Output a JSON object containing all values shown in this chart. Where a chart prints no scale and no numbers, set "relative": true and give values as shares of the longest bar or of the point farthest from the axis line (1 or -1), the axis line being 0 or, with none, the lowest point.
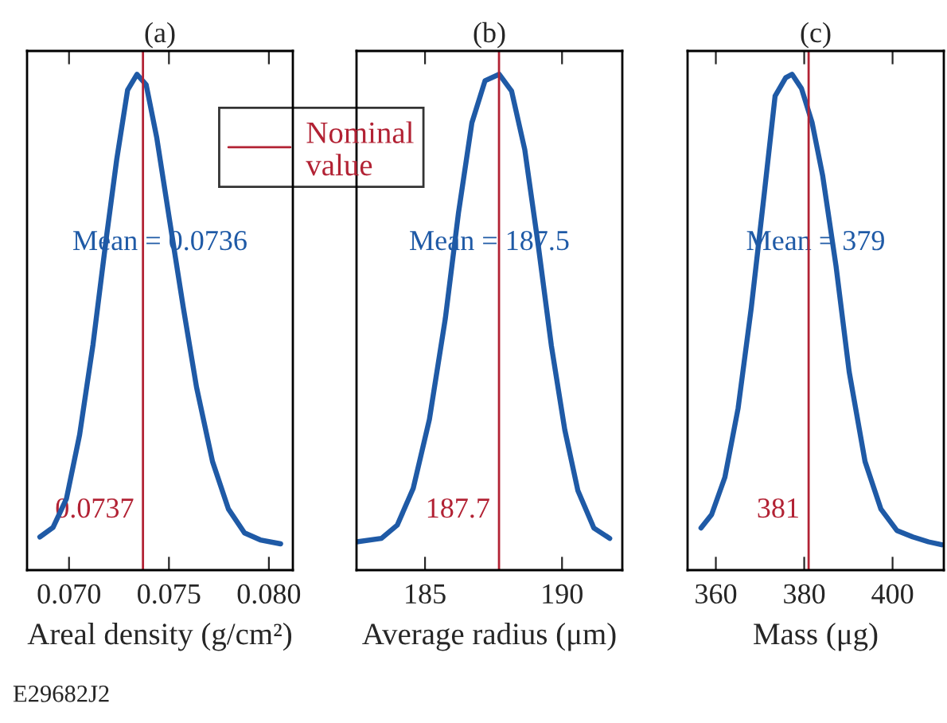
{
  "chart_data": [
    {
      "type": "line",
      "title": "(a)",
      "xlabel": "Areal density (g/cm²)",
      "relative": true,
      "tick_labels": "x",
      "xlim": [
        0.0679,
        0.0812
      ],
      "xticks": [
        {
          "value": 0.07,
          "label": "0.070"
        },
        {
          "value": 0.075,
          "label": "0.075"
        },
        {
          "value": 0.08,
          "label": "0.080"
        }
      ],
      "grid": false,
      "legend": "top right",
      "marker": "none",
      "line_style": "solid",
      "series": [
        {
          "color": "#1f5aa6",
          "x": [
            0.06854,
            0.0692,
            0.06987,
            0.07053,
            0.0712,
            0.07186,
            0.07239,
            0.07293,
            0.0734,
            0.07386,
            0.07439,
            0.07505,
            0.07572,
            0.07638,
            0.07718,
            0.07798,
            0.07878,
            0.07957,
            0.08059
          ],
          "values": [
            0.067,
            0.086,
            0.144,
            0.273,
            0.455,
            0.668,
            0.829,
            0.968,
            1,
            0.979,
            0.872,
            0.701,
            0.529,
            0.369,
            0.219,
            0.123,
            0.075,
            0.061,
            0.053
          ]
        }
      ],
      "ref_lines": [
        {
          "axis": "x",
          "value": 0.0737,
          "label": "Nominal value",
          "color": "#b22234"
        }
      ],
      "annotations": [
        "Mean = 0.0736",
        {
          "text": "0.0737",
          "x": 0.0737,
          "y": 0.12
        },
        "E29682J2"
      ]
    },
    {
      "type": "line",
      "title": "(b)",
      "xlabel": "Average radius (μm)",
      "relative": true,
      "tick_labels": "x",
      "xlim": [
        182.5,
        192.2
      ],
      "xticks": [
        185,
        190
      ],
      "grid": false,
      "marker": "none",
      "line_style": "solid",
      "series": [
        {
          "color": "#1f5aa6",
          "x": [
            182.5,
            183.41,
            183.99,
            184.57,
            185.16,
            185.74,
            186.22,
            186.71,
            187.19,
            187.71,
            188.16,
            188.64,
            189.13,
            189.61,
            190.1,
            190.58,
            191.16,
            191.74
          ],
          "values": [
            0.057,
            0.064,
            0.091,
            0.165,
            0.304,
            0.507,
            0.72,
            0.902,
            0.987,
            1,
            0.966,
            0.848,
            0.656,
            0.453,
            0.283,
            0.16,
            0.085,
            0.064
          ]
        }
      ],
      "ref_lines": [
        {
          "axis": "x",
          "value": 187.7,
          "color": "#b22234"
        }
      ],
      "annotations": [
        "Mean = 187.5",
        {
          "text": "187.7",
          "x": 187.7,
          "y": 0.12
        }
      ]
    },
    {
      "type": "line",
      "title": "(c)",
      "xlabel": "Mass (μg)",
      "relative": true,
      "tick_labels": "x",
      "xlim": [
        353.6,
        411.6
      ],
      "xticks": [
        360,
        380,
        400
      ],
      "grid": false,
      "marker": "none",
      "line_style": "solid",
      "series": [
        {
          "color": "#1f5aa6",
          "x": [
            356.65,
            359.04,
            362.04,
            365.03,
            368.02,
            371.02,
            373.41,
            375.81,
            377.25,
            379.4,
            381.8,
            384.19,
            387.19,
            390.18,
            393.77,
            397.37,
            400.96,
            404.55,
            408.14,
            411.14
          ],
          "values": [
            0.085,
            0.112,
            0.187,
            0.326,
            0.529,
            0.764,
            0.956,
            0.993,
            1,
            0.971,
            0.902,
            0.795,
            0.614,
            0.4,
            0.219,
            0.123,
            0.08,
            0.067,
            0.057,
            0.051
          ]
        }
      ],
      "ref_lines": [
        {
          "axis": "x",
          "value": 381,
          "color": "#b22234"
        }
      ],
      "annotations": [
        "Mean = 379",
        {
          "text": "381",
          "x": 381,
          "y": 0.12
        }
      ]
    }
  ]
}
